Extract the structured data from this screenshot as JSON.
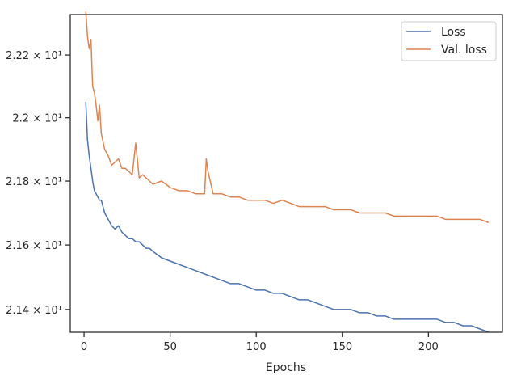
{
  "chart_data": {
    "type": "line",
    "xlabel": "Epochs",
    "ylabel": "",
    "xlim": [
      -8,
      243
    ],
    "ylim": [
      21.33,
      22.33
    ],
    "yscale": "log",
    "grid": false,
    "legend_position": "top-right",
    "x_ticks": [
      {
        "value": 0,
        "label": "0"
      },
      {
        "value": 50,
        "label": "50"
      },
      {
        "value": 100,
        "label": "100"
      },
      {
        "value": 150,
        "label": "150"
      },
      {
        "value": 200,
        "label": "200"
      }
    ],
    "y_ticks": [
      {
        "value": 21.4,
        "label": "2.14 × 10¹"
      },
      {
        "value": 21.6,
        "label": "2.16 × 10¹"
      },
      {
        "value": 21.8,
        "label": "2.18 × 10¹"
      },
      {
        "value": 22.0,
        "label": "2.2 × 10¹"
      },
      {
        "value": 22.2,
        "label": "2.22 × 10¹"
      }
    ],
    "series": [
      {
        "name": "Loss",
        "color": "#4c72b0",
        "x": [
          1,
          2,
          3,
          4,
          5,
          6,
          7,
          8,
          9,
          10,
          12,
          14,
          16,
          18,
          20,
          22,
          24,
          26,
          28,
          30,
          32,
          34,
          36,
          38,
          40,
          45,
          50,
          55,
          60,
          65,
          70,
          75,
          80,
          85,
          90,
          95,
          100,
          105,
          110,
          115,
          120,
          125,
          130,
          135,
          140,
          145,
          150,
          155,
          160,
          165,
          170,
          175,
          180,
          185,
          190,
          195,
          200,
          205,
          210,
          215,
          220,
          225,
          230,
          235
        ],
        "values": [
          22.05,
          21.93,
          21.88,
          21.84,
          21.8,
          21.77,
          21.76,
          21.75,
          21.74,
          21.74,
          21.7,
          21.68,
          21.66,
          21.65,
          21.66,
          21.64,
          21.63,
          21.62,
          21.62,
          21.61,
          21.61,
          21.6,
          21.59,
          21.59,
          21.58,
          21.56,
          21.55,
          21.54,
          21.53,
          21.52,
          21.51,
          21.5,
          21.49,
          21.48,
          21.48,
          21.47,
          21.46,
          21.46,
          21.45,
          21.45,
          21.44,
          21.43,
          21.43,
          21.42,
          21.41,
          21.4,
          21.4,
          21.4,
          21.39,
          21.39,
          21.38,
          21.38,
          21.37,
          21.37,
          21.37,
          21.37,
          21.37,
          21.37,
          21.36,
          21.36,
          21.35,
          21.35,
          21.34,
          21.33
        ]
      },
      {
        "name": "Val. loss",
        "color": "#dd8452",
        "x": [
          1,
          2,
          3,
          4,
          5,
          6,
          7,
          8,
          9,
          10,
          12,
          14,
          16,
          18,
          20,
          22,
          24,
          26,
          28,
          30,
          32,
          34,
          36,
          38,
          40,
          45,
          50,
          55,
          60,
          65,
          70,
          71,
          72,
          75,
          80,
          85,
          90,
          95,
          100,
          105,
          110,
          115,
          120,
          125,
          130,
          135,
          140,
          145,
          150,
          155,
          160,
          165,
          170,
          175,
          180,
          185,
          190,
          195,
          200,
          205,
          210,
          215,
          220,
          225,
          230,
          235
        ],
        "values": [
          22.34,
          22.26,
          22.22,
          22.25,
          22.1,
          22.08,
          22.04,
          21.99,
          22.04,
          21.95,
          21.9,
          21.88,
          21.85,
          21.86,
          21.87,
          21.84,
          21.84,
          21.83,
          21.82,
          21.92,
          21.81,
          21.82,
          21.81,
          21.8,
          21.79,
          21.8,
          21.78,
          21.77,
          21.77,
          21.76,
          21.76,
          21.87,
          21.83,
          21.76,
          21.76,
          21.75,
          21.75,
          21.74,
          21.74,
          21.74,
          21.73,
          21.74,
          21.73,
          21.72,
          21.72,
          21.72,
          21.72,
          21.71,
          21.71,
          21.71,
          21.7,
          21.7,
          21.7,
          21.7,
          21.69,
          21.69,
          21.69,
          21.69,
          21.69,
          21.69,
          21.68,
          21.68,
          21.68,
          21.68,
          21.68,
          21.67
        ]
      }
    ]
  }
}
